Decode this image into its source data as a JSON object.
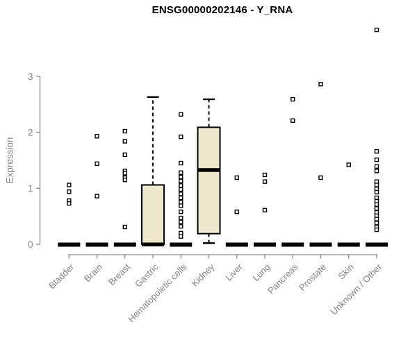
{
  "chart_data": {
    "type": "boxplot",
    "title": "ENSG00000202146 - Y_RNA",
    "ylabel": "Expression",
    "yticks": [
      0,
      1,
      2,
      3
    ],
    "ylim": [
      0,
      3.9
    ],
    "grid": false,
    "legend": "none",
    "box_fill_color": "#EDE8CE",
    "box_stroke_color": "#000000",
    "axis_color": "#8A8A8A",
    "label_color": "#828282",
    "title_color": "#000000",
    "categories": [
      "Bladder",
      "Brain",
      "Breast",
      "Gastric",
      "Hematopoietic cells",
      "Kidney",
      "Liver",
      "Lung",
      "Pancreas",
      "Prostate",
      "Skin",
      "Unknown / Other"
    ],
    "series": [
      {
        "name": "Bladder",
        "q1": 0,
        "median": 0,
        "q3": 0,
        "whisker_low": 0,
        "whisker_high": 0,
        "outliers": [
          1.06,
          0.94,
          0.78,
          0.73
        ]
      },
      {
        "name": "Brain",
        "q1": 0,
        "median": 0,
        "q3": 0,
        "whisker_low": 0,
        "whisker_high": 0,
        "outliers": [
          1.93,
          1.44,
          0.86
        ]
      },
      {
        "name": "Breast",
        "q1": 0,
        "median": 0,
        "q3": 0,
        "whisker_low": 0,
        "whisker_high": 0,
        "outliers": [
          2.02,
          1.84,
          1.6,
          1.31,
          1.27,
          1.19,
          1.15,
          0.31
        ]
      },
      {
        "name": "Gastric",
        "q1": 0,
        "median": 0,
        "q3": 1.06,
        "whisker_low": 0,
        "whisker_high": 2.63,
        "outliers": []
      },
      {
        "name": "Hematopoietic cells",
        "q1": 0,
        "median": 0,
        "q3": 0,
        "whisker_low": 0,
        "whisker_high": 0,
        "outliers": [
          2.32,
          1.92,
          1.45,
          1.28,
          1.2,
          1.13,
          1.05,
          0.98,
          0.9,
          0.83,
          0.75,
          0.69,
          0.58,
          0.47,
          0.4,
          0.32,
          0.2,
          0.14
        ]
      },
      {
        "name": "Kidney",
        "q1": 0.19,
        "median": 1.33,
        "q3": 2.09,
        "whisker_low": 0.02,
        "whisker_high": 2.59,
        "outliers": []
      },
      {
        "name": "Liver",
        "q1": 0,
        "median": 0,
        "q3": 0,
        "whisker_low": 0,
        "whisker_high": 0,
        "outliers": [
          1.19,
          0.58
        ]
      },
      {
        "name": "Lung",
        "q1": 0,
        "median": 0,
        "q3": 0,
        "whisker_low": 0,
        "whisker_high": 0,
        "outliers": [
          1.24,
          1.12,
          0.61
        ]
      },
      {
        "name": "Pancreas",
        "q1": 0,
        "median": 0,
        "q3": 0,
        "whisker_low": 0,
        "whisker_high": 0,
        "outliers": [
          2.59,
          2.21
        ]
      },
      {
        "name": "Prostate",
        "q1": 0,
        "median": 0,
        "q3": 0,
        "whisker_low": 0,
        "whisker_high": 0,
        "outliers": [
          2.86,
          1.19
        ]
      },
      {
        "name": "Skin",
        "q1": 0,
        "median": 0,
        "q3": 0,
        "whisker_low": 0,
        "whisker_high": 0,
        "outliers": [
          1.42
        ]
      },
      {
        "name": "Unknown / Other",
        "q1": 0,
        "median": 0,
        "q3": 0,
        "whisker_low": 0,
        "whisker_high": 0,
        "outliers": [
          3.83,
          1.66,
          1.51,
          1.39,
          1.31,
          1.12,
          1.06,
          0.99,
          0.93,
          0.83,
          0.77,
          0.71,
          0.64,
          0.57,
          0.51,
          0.45,
          0.38,
          0.31,
          0.26
        ]
      }
    ]
  }
}
